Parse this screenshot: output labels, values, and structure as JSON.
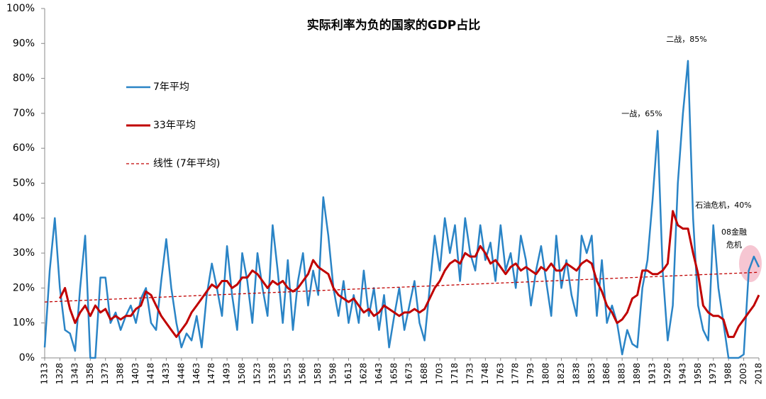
{
  "chart_data": {
    "type": "line",
    "title": "实际利率为负的国家的GDP占比",
    "x": [
      1313,
      1318,
      1323,
      1328,
      1333,
      1338,
      1343,
      1348,
      1353,
      1358,
      1363,
      1368,
      1373,
      1378,
      1383,
      1388,
      1393,
      1398,
      1403,
      1408,
      1413,
      1418,
      1423,
      1428,
      1433,
      1438,
      1443,
      1448,
      1453,
      1458,
      1463,
      1468,
      1473,
      1478,
      1483,
      1488,
      1493,
      1498,
      1503,
      1508,
      1513,
      1518,
      1523,
      1528,
      1533,
      1538,
      1543,
      1548,
      1553,
      1558,
      1563,
      1568,
      1573,
      1578,
      1583,
      1588,
      1593,
      1598,
      1603,
      1608,
      1613,
      1618,
      1623,
      1628,
      1633,
      1638,
      1643,
      1648,
      1653,
      1658,
      1663,
      1668,
      1673,
      1678,
      1683,
      1688,
      1693,
      1698,
      1703,
      1708,
      1713,
      1718,
      1723,
      1728,
      1733,
      1738,
      1743,
      1748,
      1753,
      1758,
      1763,
      1768,
      1773,
      1778,
      1783,
      1788,
      1793,
      1798,
      1803,
      1808,
      1813,
      1818,
      1823,
      1828,
      1833,
      1838,
      1843,
      1848,
      1853,
      1858,
      1863,
      1868,
      1873,
      1878,
      1883,
      1888,
      1893,
      1898,
      1903,
      1908,
      1913,
      1918,
      1923,
      1928,
      1933,
      1938,
      1943,
      1948,
      1953,
      1958,
      1963,
      1968,
      1973,
      1978,
      1983,
      1988,
      1993,
      1998,
      2003,
      2008,
      2013,
      2018
    ],
    "series": [
      {
        "name": "7年平均",
        "color": "#2a84c6",
        "values": [
          3,
          25,
          40,
          20,
          8,
          7,
          2,
          20,
          35,
          0,
          0,
          23,
          23,
          10,
          13,
          8,
          12,
          15,
          10,
          17,
          20,
          10,
          8,
          22,
          34,
          20,
          10,
          3,
          7,
          5,
          12,
          3,
          18,
          27,
          20,
          12,
          32,
          18,
          8,
          30,
          22,
          10,
          30,
          20,
          12,
          38,
          25,
          10,
          28,
          8,
          22,
          30,
          15,
          25,
          18,
          46,
          35,
          20,
          12,
          22,
          10,
          18,
          10,
          25,
          12,
          20,
          8,
          18,
          3,
          12,
          20,
          8,
          15,
          22,
          10,
          5,
          20,
          35,
          25,
          40,
          30,
          38,
          22,
          40,
          30,
          25,
          38,
          28,
          33,
          22,
          38,
          25,
          30,
          20,
          35,
          28,
          15,
          25,
          32,
          22,
          12,
          35,
          20,
          28,
          18,
          12,
          35,
          30,
          35,
          12,
          28,
          10,
          15,
          10,
          1,
          8,
          4,
          3,
          20,
          28,
          45,
          65,
          25,
          5,
          15,
          50,
          70,
          85,
          40,
          15,
          8,
          5,
          38,
          20,
          10,
          0,
          0,
          0,
          1,
          25,
          29,
          26
        ]
      },
      {
        "name": "33年平均",
        "color": "#c00000",
        "values": [
          null,
          null,
          null,
          17,
          20,
          14,
          10,
          13,
          15,
          12,
          15,
          13,
          14,
          11,
          12,
          11,
          12,
          12,
          14,
          15,
          19,
          18,
          15,
          12,
          10,
          8,
          6,
          8,
          10,
          13,
          15,
          17,
          19,
          21,
          20,
          22,
          22,
          20,
          21,
          23,
          23,
          25,
          24,
          22,
          20,
          22,
          21,
          22,
          20,
          19,
          20,
          22,
          24,
          28,
          26,
          25,
          24,
          20,
          18,
          17,
          16,
          17,
          15,
          13,
          14,
          12,
          13,
          15,
          14,
          13,
          12,
          13,
          13,
          14,
          13,
          14,
          17,
          20,
          22,
          25,
          27,
          28,
          27,
          30,
          29,
          29,
          32,
          30,
          27,
          28,
          26,
          24,
          26,
          27,
          25,
          26,
          25,
          24,
          26,
          25,
          27,
          25,
          25,
          27,
          26,
          25,
          27,
          28,
          27,
          22,
          19,
          15,
          13,
          10,
          11,
          13,
          17,
          18,
          25,
          25,
          24,
          24,
          25,
          27,
          42,
          38,
          37,
          37,
          30,
          24,
          15,
          13,
          12,
          12,
          11,
          6,
          6,
          9,
          11,
          13,
          15,
          18
        ]
      }
    ],
    "trend": {
      "name": "线性 (7年平均)",
      "color": "#c00000",
      "x": [
        1313,
        2018
      ],
      "values": [
        16,
        24.5
      ]
    },
    "annotations": [
      "一战，65%",
      "二战，85%",
      "石油危机，40%",
      "08金融",
      "危机"
    ],
    "xlim": [
      1313,
      2018
    ],
    "xticks": [
      1313,
      1328,
      1343,
      1358,
      1373,
      1388,
      1403,
      1418,
      1433,
      1448,
      1463,
      1478,
      1493,
      1508,
      1523,
      1538,
      1553,
      1568,
      1583,
      1598,
      1613,
      1628,
      1643,
      1658,
      1673,
      1688,
      1703,
      1718,
      1733,
      1748,
      1763,
      1778,
      1793,
      1808,
      1823,
      1838,
      1853,
      1868,
      1883,
      1898,
      1913,
      1928,
      1943,
      1958,
      1973,
      1988,
      2003,
      2018
    ],
    "ylim": [
      0,
      100
    ],
    "yticks": [
      {
        "value": 0,
        "label": "0%"
      },
      {
        "value": 10,
        "label": "10%"
      },
      {
        "value": 20,
        "label": "20%"
      },
      {
        "value": 30,
        "label": "30%"
      },
      {
        "value": 40,
        "label": "40%"
      },
      {
        "value": 50,
        "label": "50%"
      },
      {
        "value": 60,
        "label": "60%"
      },
      {
        "value": 70,
        "label": "70%"
      },
      {
        "value": 80,
        "label": "80%"
      },
      {
        "value": 90,
        "label": "90%"
      },
      {
        "value": 100,
        "label": "100%"
      }
    ],
    "legend": "upper left"
  }
}
